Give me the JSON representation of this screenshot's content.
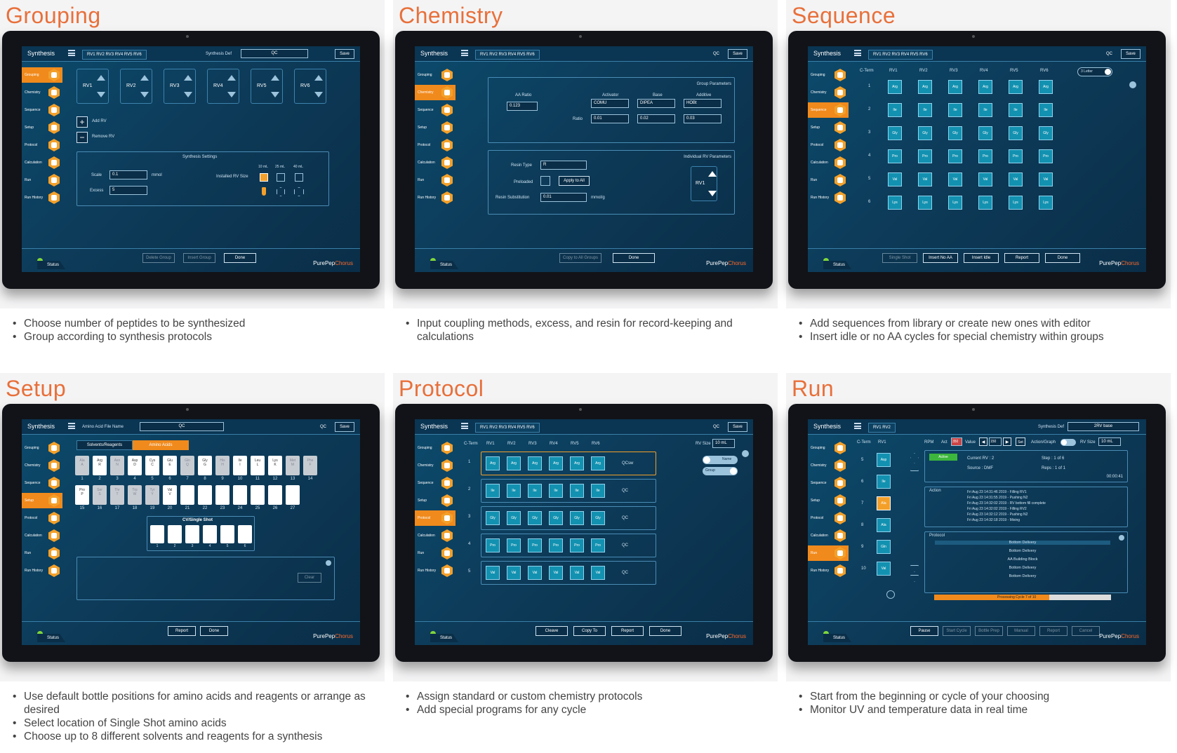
{
  "common": {
    "app": "Synthesis",
    "save": "Save",
    "status": "Status",
    "brand_pre": "PurePep",
    "brand_post": "Chorus",
    "qc": "QC",
    "rv_tabs_6": "RV1 RV2 RV3 RV4 RV5 RV6",
    "sidebar": [
      "Grouping",
      "Chemistry",
      "Sequence",
      "Setup",
      "Protocol",
      "Calculation",
      "Run",
      "Run History"
    ]
  },
  "grouping": {
    "title": "Grouping",
    "synth_def_label": "Synthesis Def",
    "synth_def_value": "QC",
    "rvs": [
      "RV1",
      "RV2",
      "RV3",
      "RV4",
      "RV5",
      "RV6"
    ],
    "add_rv": "Add RV",
    "remove_rv": "Remove RV",
    "settings_title": "Synthesis Settings",
    "scale_label": "Scale",
    "scale_value": "0.1",
    "scale_unit": "mmol",
    "excess_label": "Excess",
    "excess_value": "5",
    "installed_rv_size": "Installed RV Size",
    "sizes": [
      "10 mL",
      "25 mL",
      "40 mL"
    ],
    "btn_delete": "Delete Group",
    "btn_insert": "Insert Group",
    "btn_done": "Done",
    "bullets": [
      "Choose number of peptides to be synthesized",
      "Group according to synthesis protocols"
    ]
  },
  "chemistry": {
    "title": "Chemistry",
    "group_params": "Group Parameters",
    "aa_ratio_label": "AA Ratio",
    "aa_ratio_value": "0.123",
    "activator_label": "Activator",
    "activator_value": "COMU",
    "base_label": "Base",
    "base_value": "DIPEA",
    "additive_label": "Additive",
    "additive_value": "HOBt",
    "ratio_label": "Ratio",
    "ratios": [
      "0.01",
      "0.02",
      "0.03"
    ],
    "indiv_params": "Individual RV Parameters",
    "resin_type_label": "Resin Type",
    "resin_type_value": "R",
    "preloaded_label": "Preloaded",
    "apply_all": "Apply to All",
    "resin_sub_label": "Resin Substitution",
    "resin_sub_value": "0.01",
    "resin_sub_unit": "mmol/g",
    "rv": "RV1",
    "btn_copy": "Copy to All Groups",
    "btn_done": "Done",
    "bullets": [
      "Input coupling methods, excess, and resin for record-keeping and calculations"
    ]
  },
  "sequence": {
    "title": "Sequence",
    "cterm": "C-Term",
    "rvs": [
      "RV1",
      "RV2",
      "RV3",
      "RV4",
      "RV5",
      "RV6"
    ],
    "toggle_label": "3 Letter",
    "rows": [
      {
        "n": "1",
        "aa": "Arg"
      },
      {
        "n": "2",
        "aa": "Ile"
      },
      {
        "n": "3",
        "aa": "Gly"
      },
      {
        "n": "4",
        "aa": "Pro"
      },
      {
        "n": "5",
        "aa": "Val"
      },
      {
        "n": "6",
        "aa": "Lys"
      }
    ],
    "btns": [
      "Single Shot",
      "Insert No AA",
      "Insert Idle",
      "Report",
      "Done"
    ],
    "bullets": [
      "Add sequences from library or create new ones with editor",
      "Insert idle or no AA cycles for special chemistry within groups"
    ]
  },
  "setup": {
    "title": "Setup",
    "aa_file_label": "Amino Acid File Name",
    "aa_file_value": "QC",
    "tab_solvents": "Solvents/Reagents",
    "tab_amino": "Amino Acids",
    "row1": [
      {
        "t": "Ala\nA",
        "g": true
      },
      {
        "t": "Arg\nR",
        "g": false
      },
      {
        "t": "Asn\nN",
        "g": true
      },
      {
        "t": "Asp\nD",
        "g": false
      },
      {
        "t": "Cys\nC",
        "g": false
      },
      {
        "t": "Glu\nE",
        "g": false
      },
      {
        "t": "Gln\nQ",
        "g": true
      },
      {
        "t": "Gly\nG",
        "g": false
      },
      {
        "t": "His\nH",
        "g": true
      },
      {
        "t": "Ile\nI",
        "g": false
      },
      {
        "t": "Leu\nL",
        "g": false
      },
      {
        "t": "Lys\nK",
        "g": false
      },
      {
        "t": "Met\nM",
        "g": true
      },
      {
        "t": "Phe\nF",
        "g": true
      }
    ],
    "row2": [
      {
        "t": "Pro\nP",
        "g": false
      },
      {
        "t": "Ser\nS",
        "g": true
      },
      {
        "t": "Thr\nT",
        "g": true
      },
      {
        "t": "Trp\nW",
        "g": true
      },
      {
        "t": "Tyr\nY",
        "g": true
      },
      {
        "t": "Val\nV",
        "g": false
      },
      {
        "t": "",
        "g": false
      },
      {
        "t": "",
        "g": false
      },
      {
        "t": "",
        "g": false
      },
      {
        "t": "",
        "g": false
      },
      {
        "t": "",
        "g": false
      },
      {
        "t": "",
        "g": false
      },
      {
        "t": "",
        "g": false
      }
    ],
    "row1_nums": [
      "1",
      "2",
      "3",
      "4",
      "5",
      "6",
      "7",
      "8",
      "9",
      "10",
      "11",
      "12",
      "13",
      "14"
    ],
    "row2_nums": [
      "15",
      "16",
      "17",
      "18",
      "19",
      "20",
      "21",
      "22",
      "23",
      "24",
      "25",
      "26",
      "27"
    ],
    "cv_title": "CV/Single Shot",
    "cv_nums": [
      "1",
      "2",
      "3",
      "4",
      "5",
      "6"
    ],
    "clear": "Clear",
    "btns": [
      "Report",
      "Done"
    ],
    "bullets": [
      "Use default bottle positions for amino acids and reagents or arrange as desired",
      "Select location of Single Shot amino acids",
      "Choose up to 8 different solvents and reagents for a synthesis"
    ]
  },
  "protocol": {
    "title": "Protocol",
    "cterm": "C-Term",
    "rvs": [
      "RV1",
      "RV2",
      "RV3",
      "RV4",
      "RV5",
      "RV6"
    ],
    "rv_size_label": "RV Size",
    "rv_size_value": "10 mL",
    "toggle_name": "Name",
    "toggle_group": "Group",
    "rows": [
      {
        "n": "1",
        "aa": "Arg",
        "p": "QCsw"
      },
      {
        "n": "2",
        "aa": "Ile",
        "p": "QC"
      },
      {
        "n": "3",
        "aa": "Gly",
        "p": "QC"
      },
      {
        "n": "4",
        "aa": "Pro",
        "p": "QC"
      },
      {
        "n": "5",
        "aa": "Val",
        "p": "QC"
      }
    ],
    "btns": [
      "Cleave",
      "Copy To",
      "Report",
      "Done"
    ],
    "bullets": [
      "Assign standard or custom chemistry protocols",
      "Add special programs for any cycle"
    ]
  },
  "run": {
    "title": "Run",
    "tabs": "RV1 RV2",
    "synth_def_label": "Synthesis Def",
    "synth_def_value": "2RV base",
    "cterm": "C-Term",
    "rv1": "RV1",
    "rpm": "RPM",
    "act": "Act",
    "act_value": "350",
    "value_label": "Value",
    "value_value": "150",
    "set": "Set",
    "action_graph": "Action/Graph",
    "rv_size_label": "RV Size",
    "rv_size_value": "10 mL",
    "active": "Active",
    "current_rv": "Current RV : 2",
    "step": "Step : 1  of  6",
    "source": "Source      : DMF",
    "reps": "Reps : 1  of  1",
    "timer": "00:00:41",
    "action_label": "Action",
    "log": [
      "Fri Aug 23 14:31:46 2019 -  Filling RV1",
      "Fri Aug 23 14:31:55 2019 -  Pushing N2",
      "Fri Aug 23 14:32:02 2019 -  RV bottom fill complete",
      "Fri Aug 23 14:32:02 2019 -  Filling RV2",
      "Fri Aug 23 14:32:12 2019 -  Pushing N2",
      "Fri Aug 23 14:32:18 2019 -  Mixing"
    ],
    "protocol_label": "Protocol",
    "protocol_steps": [
      "Bottom Delivery",
      "Bottom Delivery",
      "AA Building Block",
      "Bottom Delivery",
      "Bottom Delivery"
    ],
    "seq": [
      {
        "n": "5",
        "aa": "Asp",
        "hl": false
      },
      {
        "n": "6",
        "aa": "Ile",
        "hl": false
      },
      {
        "n": "7",
        "aa": "Ala",
        "hl": true
      },
      {
        "n": "8",
        "aa": "Ala",
        "hl": false
      },
      {
        "n": "9",
        "aa": "Gln",
        "hl": false
      },
      {
        "n": "10",
        "aa": "Val",
        "hl": false
      }
    ],
    "progress_label": "Processing Cycle 7 of 10",
    "progress": 0.65,
    "btns": [
      "Pause",
      "Start Cycle",
      "Bottle Prep",
      "Manual",
      "Report",
      "Cancel"
    ],
    "bullets": [
      "Start from the beginning or cycle of your choosing",
      "Monitor UV and temperature data in real time"
    ]
  }
}
